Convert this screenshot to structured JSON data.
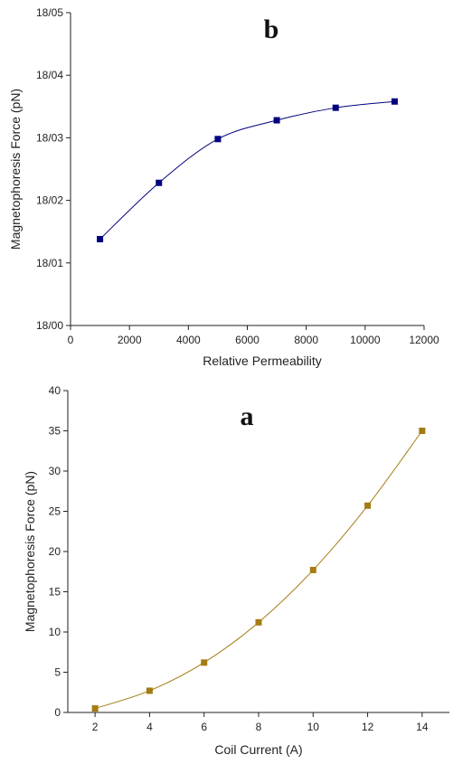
{
  "chart_data": [
    {
      "type": "line",
      "panel_label": "b",
      "xlabel": "Relative Permeability",
      "ylabel": "Magnetophoresis Force (pN)",
      "xlim": [
        0,
        12000
      ],
      "ylim": [
        0,
        5
      ],
      "x_ticks": [
        0,
        2000,
        4000,
        6000,
        8000,
        10000,
        12000
      ],
      "y_ticks": [
        0,
        1,
        2,
        3,
        4,
        5
      ],
      "y_tick_labels": [
        "18/00",
        "18/01",
        "18/02",
        "18/03",
        "18/04",
        "18/05"
      ],
      "grid": false,
      "marker": "square",
      "color": "#00007f",
      "series": [
        {
          "x": [
            1000,
            3000,
            5000,
            7000,
            9000,
            11000
          ],
          "y": [
            1.38,
            2.28,
            2.98,
            3.28,
            3.48,
            3.58
          ]
        }
      ]
    },
    {
      "type": "line",
      "panel_label": "a",
      "xlabel": "Coil Current (A)",
      "ylabel": "Magnetophoresis Force (pN)",
      "xlim": [
        1,
        15
      ],
      "ylim": [
        0,
        40
      ],
      "x_ticks": [
        2,
        4,
        6,
        8,
        10,
        12,
        14
      ],
      "y_ticks": [
        0,
        5,
        10,
        15,
        20,
        25,
        30,
        35,
        40
      ],
      "grid": false,
      "marker": "square",
      "color": "#a37c12",
      "series": [
        {
          "x": [
            2,
            4,
            6,
            8,
            10,
            12,
            14
          ],
          "y": [
            0.5,
            2.7,
            6.2,
            11.2,
            17.7,
            25.7,
            35.0
          ]
        }
      ]
    }
  ]
}
